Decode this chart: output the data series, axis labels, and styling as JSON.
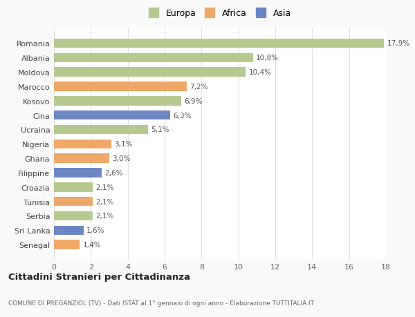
{
  "countries": [
    "Romania",
    "Albania",
    "Moldova",
    "Marocco",
    "Kosovo",
    "Cina",
    "Ucraina",
    "Nigeria",
    "Ghana",
    "Filippine",
    "Croazia",
    "Tunisia",
    "Serbia",
    "Sri Lanka",
    "Senegal"
  ],
  "values": [
    17.9,
    10.8,
    10.4,
    7.2,
    6.9,
    6.3,
    5.1,
    3.1,
    3.0,
    2.6,
    2.1,
    2.1,
    2.1,
    1.6,
    1.4
  ],
  "labels": [
    "17,9%",
    "10,8%",
    "10,4%",
    "7,2%",
    "6,9%",
    "6,3%",
    "5,1%",
    "3,1%",
    "3,0%",
    "2,6%",
    "2,1%",
    "2,1%",
    "2,1%",
    "1,6%",
    "1,4%"
  ],
  "continents": [
    "Europa",
    "Europa",
    "Europa",
    "Africa",
    "Europa",
    "Asia",
    "Europa",
    "Africa",
    "Africa",
    "Asia",
    "Europa",
    "Africa",
    "Europa",
    "Asia",
    "Africa"
  ],
  "colors": {
    "Europa": "#b5c98e",
    "Africa": "#f0a868",
    "Asia": "#6b86c2"
  },
  "xlim": [
    0,
    18
  ],
  "xticks": [
    0,
    2,
    4,
    6,
    8,
    10,
    12,
    14,
    16,
    18
  ],
  "title": "Cittadini Stranieri per Cittadinanza",
  "subtitle": "COMUNE DI PREGANZIOL (TV) - Dati ISTAT al 1° gennaio di ogni anno - Elaborazione TUTTITALIA.IT",
  "background_color": "#f9f9f9",
  "bar_background": "#ffffff",
  "grid_color": "#e0e0e0"
}
